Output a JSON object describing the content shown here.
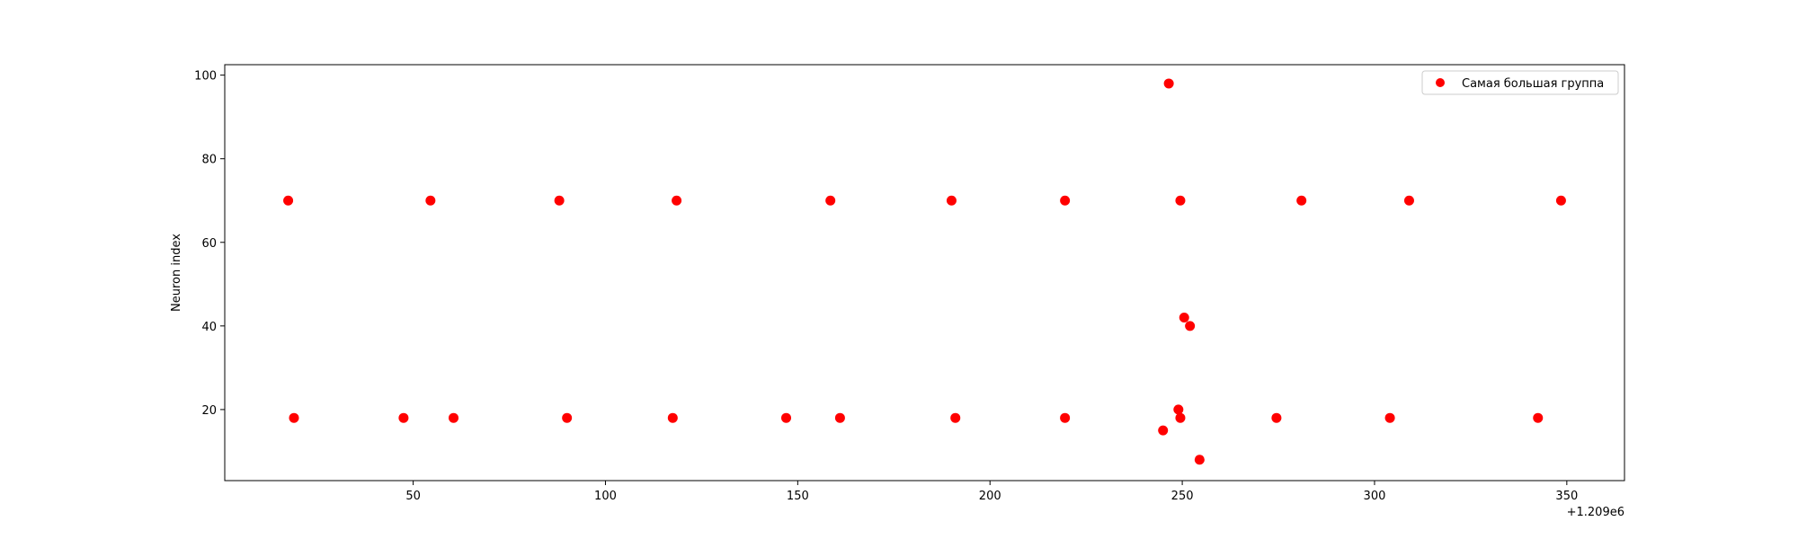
{
  "chart_data": {
    "type": "scatter",
    "title": "",
    "xlabel": "",
    "ylabel": "Neuron index",
    "x_offset_label": "+1.209e6",
    "xlim": [
      1,
      365
    ],
    "ylim": [
      3,
      102.5
    ],
    "xticks": [
      50,
      100,
      150,
      200,
      250,
      300,
      350
    ],
    "yticks": [
      20,
      40,
      60,
      80,
      100
    ],
    "grid": false,
    "legend_position": "upper right",
    "series": [
      {
        "name": "Самая большая группа",
        "color": "#ff0000",
        "points": [
          {
            "x": 17.5,
            "y": 70
          },
          {
            "x": 54.5,
            "y": 70
          },
          {
            "x": 88,
            "y": 70
          },
          {
            "x": 118.5,
            "y": 70
          },
          {
            "x": 158.5,
            "y": 70
          },
          {
            "x": 190,
            "y": 70
          },
          {
            "x": 219.5,
            "y": 70
          },
          {
            "x": 249.5,
            "y": 70
          },
          {
            "x": 281,
            "y": 70
          },
          {
            "x": 309,
            "y": 70
          },
          {
            "x": 348.5,
            "y": 70
          },
          {
            "x": 246.5,
            "y": 98
          },
          {
            "x": 250.5,
            "y": 42
          },
          {
            "x": 252,
            "y": 40
          },
          {
            "x": 249,
            "y": 20
          },
          {
            "x": 19,
            "y": 18
          },
          {
            "x": 47.5,
            "y": 18
          },
          {
            "x": 60.5,
            "y": 18
          },
          {
            "x": 90,
            "y": 18
          },
          {
            "x": 117.5,
            "y": 18
          },
          {
            "x": 147,
            "y": 18
          },
          {
            "x": 161,
            "y": 18
          },
          {
            "x": 191,
            "y": 18
          },
          {
            "x": 219.5,
            "y": 18
          },
          {
            "x": 249.5,
            "y": 18
          },
          {
            "x": 274.5,
            "y": 18
          },
          {
            "x": 304,
            "y": 18
          },
          {
            "x": 342.5,
            "y": 18
          },
          {
            "x": 245,
            "y": 15
          },
          {
            "x": 254.5,
            "y": 8
          }
        ]
      }
    ]
  }
}
